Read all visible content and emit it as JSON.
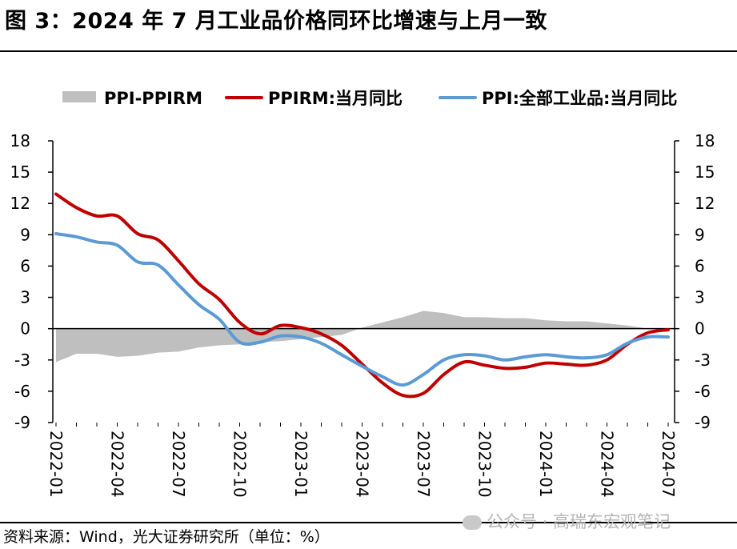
{
  "title": "图 3：2024 年 7 月工业品价格同环比增速与上月一致",
  "source": "资料来源：Wind，光大证券研究所（单位：%）",
  "watermark": "公众号 · 高瑞东宏观笔记",
  "chart_data": {
    "type": "line",
    "legend_position": "top",
    "x_tick_labels": [
      "2022-01",
      "2022-04",
      "2022-07",
      "2022-10",
      "2023-01",
      "2023-04",
      "2023-07",
      "2023-10",
      "2024-01",
      "2024-04",
      "2024-07"
    ],
    "x": [
      "2022-01",
      "2022-02",
      "2022-03",
      "2022-04",
      "2022-05",
      "2022-06",
      "2022-07",
      "2022-08",
      "2022-09",
      "2022-10",
      "2022-11",
      "2022-12",
      "2023-01",
      "2023-02",
      "2023-03",
      "2023-04",
      "2023-05",
      "2023-06",
      "2023-07",
      "2023-08",
      "2023-09",
      "2023-10",
      "2023-11",
      "2023-12",
      "2024-01",
      "2024-02",
      "2024-03",
      "2024-04",
      "2024-05",
      "2024-06",
      "2024-07"
    ],
    "ylim": [
      -9,
      18
    ],
    "yticks": [
      18,
      15,
      12,
      9,
      6,
      3,
      0,
      -3,
      -6,
      -9
    ],
    "series": [
      {
        "name": "PPI-PPIRM",
        "kind": "area",
        "color": "#bfbfbf",
        "values": [
          -3.2,
          -2.4,
          -2.4,
          -2.7,
          -2.6,
          -2.3,
          -2.2,
          -1.8,
          -1.6,
          -1.5,
          -1.3,
          -1.2,
          -1.0,
          -0.8,
          -0.6,
          0.1,
          0.6,
          1.1,
          1.7,
          1.5,
          1.1,
          1.1,
          1.0,
          1.0,
          0.8,
          0.7,
          0.7,
          0.5,
          0.3,
          0.0,
          0.0
        ]
      },
      {
        "name": "PPIRM:当月同比",
        "kind": "line",
        "color": "#c00000",
        "values": [
          12.9,
          11.6,
          10.8,
          10.8,
          9.1,
          8.5,
          6.5,
          4.3,
          2.8,
          0.6,
          -0.5,
          0.3,
          0.1,
          -0.5,
          -1.6,
          -3.4,
          -5.2,
          -6.4,
          -6.2,
          -4.4,
          -3.2,
          -3.5,
          -3.8,
          -3.7,
          -3.3,
          -3.4,
          -3.5,
          -3.0,
          -1.5,
          -0.4,
          -0.1
        ]
      },
      {
        "name": "PPI:全部工业品:当月同比",
        "kind": "line",
        "color": "#5b9bd5",
        "values": [
          9.1,
          8.8,
          8.3,
          8.0,
          6.4,
          6.1,
          4.2,
          2.3,
          0.9,
          -1.3,
          -1.3,
          -0.7,
          -0.8,
          -1.4,
          -2.5,
          -3.6,
          -4.6,
          -5.4,
          -4.4,
          -3.0,
          -2.5,
          -2.6,
          -3.0,
          -2.7,
          -2.5,
          -2.7,
          -2.8,
          -2.5,
          -1.4,
          -0.8,
          -0.8
        ]
      }
    ]
  }
}
